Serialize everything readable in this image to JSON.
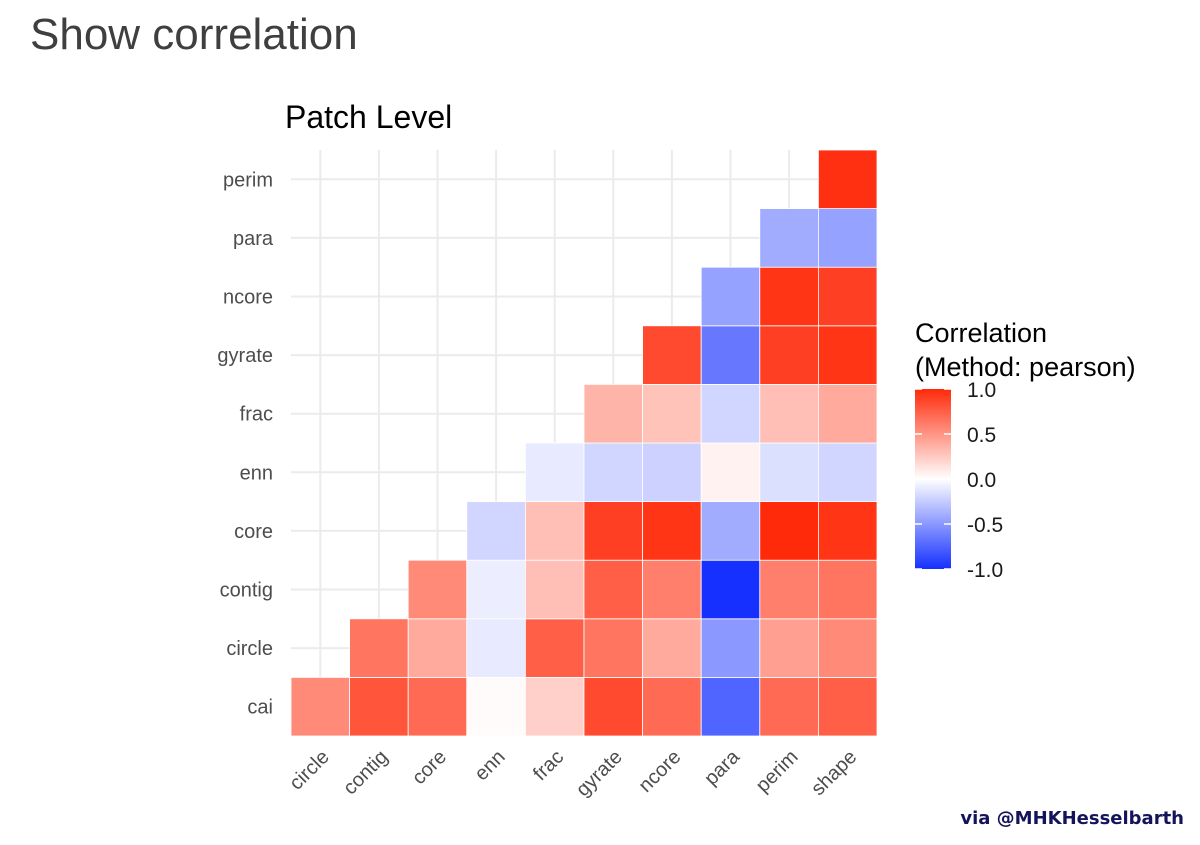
{
  "page": {
    "title": "Show correlation",
    "credit": "via @MHKHesselbarth"
  },
  "colors": {
    "low": "#1530ff",
    "mid": "#ffffff",
    "high": "#ff2a0a",
    "grid": "#ebebeb",
    "cell_border": "#ffffff"
  },
  "chart_data": {
    "type": "heatmap",
    "title": "Patch Level",
    "x_labels": [
      "circle",
      "contig",
      "core",
      "enn",
      "frac",
      "gyrate",
      "ncore",
      "para",
      "perim",
      "shape"
    ],
    "y_labels": [
      "cai",
      "circle",
      "contig",
      "core",
      "enn",
      "frac",
      "gyrate",
      "ncore",
      "para",
      "perim"
    ],
    "cells": [
      {
        "y": "cai",
        "x": "circle",
        "v": 0.55
      },
      {
        "y": "cai",
        "x": "contig",
        "v": 0.8
      },
      {
        "y": "cai",
        "x": "core",
        "v": 0.7
      },
      {
        "y": "cai",
        "x": "enn",
        "v": 0.02
      },
      {
        "y": "cai",
        "x": "frac",
        "v": 0.22
      },
      {
        "y": "cai",
        "x": "gyrate",
        "v": 0.85
      },
      {
        "y": "cai",
        "x": "ncore",
        "v": 0.7
      },
      {
        "y": "cai",
        "x": "para",
        "v": -0.75
      },
      {
        "y": "cai",
        "x": "perim",
        "v": 0.7
      },
      {
        "y": "cai",
        "x": "shape",
        "v": 0.75
      },
      {
        "y": "circle",
        "x": "contig",
        "v": 0.65
      },
      {
        "y": "circle",
        "x": "core",
        "v": 0.4
      },
      {
        "y": "circle",
        "x": "enn",
        "v": -0.1
      },
      {
        "y": "circle",
        "x": "frac",
        "v": 0.75
      },
      {
        "y": "circle",
        "x": "gyrate",
        "v": 0.65
      },
      {
        "y": "circle",
        "x": "ncore",
        "v": 0.4
      },
      {
        "y": "circle",
        "x": "para",
        "v": -0.5
      },
      {
        "y": "circle",
        "x": "perim",
        "v": 0.45
      },
      {
        "y": "circle",
        "x": "shape",
        "v": 0.55
      },
      {
        "y": "contig",
        "x": "core",
        "v": 0.55
      },
      {
        "y": "contig",
        "x": "enn",
        "v": -0.08
      },
      {
        "y": "contig",
        "x": "frac",
        "v": 0.3
      },
      {
        "y": "contig",
        "x": "gyrate",
        "v": 0.75
      },
      {
        "y": "contig",
        "x": "ncore",
        "v": 0.6
      },
      {
        "y": "contig",
        "x": "para",
        "v": -1.0
      },
      {
        "y": "contig",
        "x": "perim",
        "v": 0.6
      },
      {
        "y": "contig",
        "x": "shape",
        "v": 0.65
      },
      {
        "y": "core",
        "x": "enn",
        "v": -0.2
      },
      {
        "y": "core",
        "x": "frac",
        "v": 0.3
      },
      {
        "y": "core",
        "x": "gyrate",
        "v": 0.9
      },
      {
        "y": "core",
        "x": "ncore",
        "v": 0.95
      },
      {
        "y": "core",
        "x": "para",
        "v": -0.4
      },
      {
        "y": "core",
        "x": "perim",
        "v": 1.0
      },
      {
        "y": "core",
        "x": "shape",
        "v": 0.95
      },
      {
        "y": "enn",
        "x": "frac",
        "v": -0.1
      },
      {
        "y": "enn",
        "x": "gyrate",
        "v": -0.2
      },
      {
        "y": "enn",
        "x": "ncore",
        "v": -0.22
      },
      {
        "y": "enn",
        "x": "para",
        "v": 0.06
      },
      {
        "y": "enn",
        "x": "perim",
        "v": -0.15
      },
      {
        "y": "enn",
        "x": "shape",
        "v": -0.2
      },
      {
        "y": "frac",
        "x": "gyrate",
        "v": 0.35
      },
      {
        "y": "frac",
        "x": "ncore",
        "v": 0.28
      },
      {
        "y": "frac",
        "x": "para",
        "v": -0.2
      },
      {
        "y": "frac",
        "x": "perim",
        "v": 0.3
      },
      {
        "y": "frac",
        "x": "shape",
        "v": 0.4
      },
      {
        "y": "gyrate",
        "x": "ncore",
        "v": 0.85
      },
      {
        "y": "gyrate",
        "x": "para",
        "v": -0.65
      },
      {
        "y": "gyrate",
        "x": "perim",
        "v": 0.9
      },
      {
        "y": "gyrate",
        "x": "shape",
        "v": 0.95
      },
      {
        "y": "ncore",
        "x": "para",
        "v": -0.45
      },
      {
        "y": "ncore",
        "x": "perim",
        "v": 0.95
      },
      {
        "y": "ncore",
        "x": "shape",
        "v": 0.9
      },
      {
        "y": "para",
        "x": "perim",
        "v": -0.4
      },
      {
        "y": "para",
        "x": "shape",
        "v": -0.45
      },
      {
        "y": "perim",
        "x": "shape",
        "v": 0.97
      }
    ],
    "legend": {
      "title_line1": "Correlation",
      "title_line2": "(Method: pearson)",
      "range": [
        -1.0,
        1.0
      ],
      "ticks": [
        1.0,
        0.5,
        0.0,
        -0.5,
        -1.0
      ],
      "tick_labels": [
        "1.0",
        "0.5",
        "0.0",
        "-0.5",
        "-1.0"
      ]
    }
  }
}
